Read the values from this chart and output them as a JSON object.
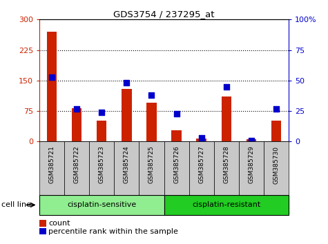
{
  "title": "GDS3754 / 237295_at",
  "samples": [
    "GSM385721",
    "GSM385722",
    "GSM385723",
    "GSM385724",
    "GSM385725",
    "GSM385726",
    "GSM385727",
    "GSM385728",
    "GSM385729",
    "GSM385730"
  ],
  "counts": [
    270,
    82,
    52,
    130,
    95,
    28,
    8,
    110,
    5,
    52
  ],
  "percentile_ranks": [
    53,
    27,
    24,
    48,
    38,
    23,
    3,
    45,
    1,
    27
  ],
  "left_ylim": [
    0,
    300
  ],
  "right_ylim": [
    0,
    100
  ],
  "left_yticks": [
    0,
    75,
    150,
    225,
    300
  ],
  "right_yticks": [
    0,
    25,
    50,
    75,
    100
  ],
  "left_yticklabels": [
    "0",
    "75",
    "150",
    "225",
    "300"
  ],
  "right_yticklabels": [
    "0",
    "25",
    "50",
    "75",
    "100%"
  ],
  "bar_color": "#cc2200",
  "dot_color": "#0000cc",
  "tick_area_color": "#c8c8c8",
  "group_sensitive_color": "#90ee90",
  "group_resistant_color": "#22cc22",
  "legend_count_label": "count",
  "legend_pct_label": "percentile rank within the sample",
  "cell_line_label": "cell line",
  "n_sensitive": 5,
  "n_resistant": 5,
  "hgrid_values": [
    75,
    150,
    225
  ],
  "bar_width": 0.4
}
